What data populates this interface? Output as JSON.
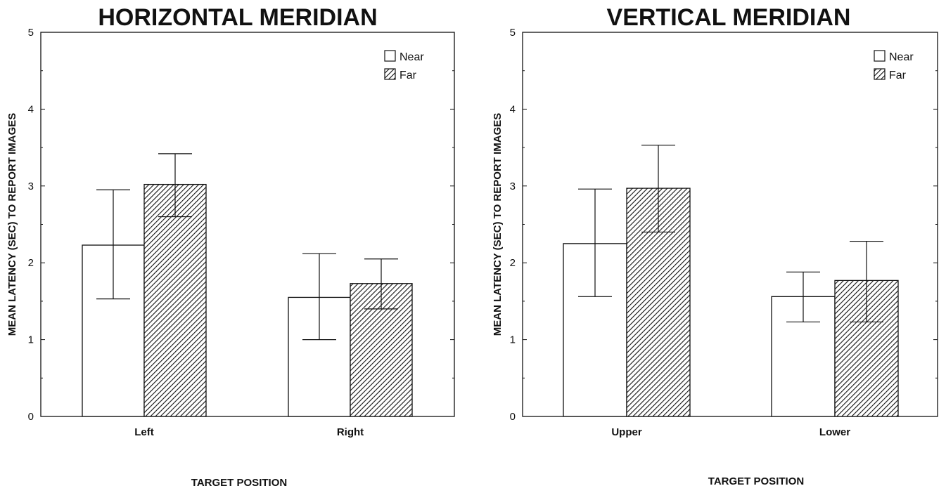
{
  "chart_data": [
    {
      "type": "bar",
      "title": "HORIZONTAL MERIDIAN",
      "xlabel": "TARGET POSITION",
      "ylabel": "MEAN LATENCY (SEC) TO REPORT IMAGES",
      "ylim": [
        0,
        5
      ],
      "yticks": [
        0,
        1,
        2,
        3,
        4,
        5
      ],
      "categories": [
        "Left",
        "Right"
      ],
      "series": [
        {
          "name": "Near",
          "fill": "open",
          "values": [
            2.23,
            1.55
          ],
          "error_low": [
            1.53,
            1.0
          ],
          "error_high": [
            2.95,
            2.12
          ]
        },
        {
          "name": "Far",
          "fill": "hatched",
          "values": [
            3.02,
            1.73
          ],
          "error_low": [
            2.6,
            1.4
          ],
          "error_high": [
            3.42,
            2.05
          ]
        }
      ],
      "legend_position": "top-right",
      "grid": false
    },
    {
      "type": "bar",
      "title": "VERTICAL MERIDIAN",
      "xlabel": "TARGET POSITION",
      "ylabel": "MEAN LATENCY (SEC) TO REPORT IMAGES",
      "ylim": [
        0,
        5
      ],
      "yticks": [
        0,
        1,
        2,
        3,
        4,
        5
      ],
      "categories": [
        "Upper",
        "Lower"
      ],
      "series": [
        {
          "name": "Near",
          "fill": "open",
          "values": [
            2.25,
            1.56
          ],
          "error_low": [
            1.56,
            1.23
          ],
          "error_high": [
            2.96,
            1.88
          ]
        },
        {
          "name": "Far",
          "fill": "hatched",
          "values": [
            2.97,
            1.77
          ],
          "error_low": [
            2.4,
            1.23
          ],
          "error_high": [
            3.53,
            2.28
          ]
        }
      ],
      "legend_position": "top-right",
      "grid": false
    }
  ]
}
